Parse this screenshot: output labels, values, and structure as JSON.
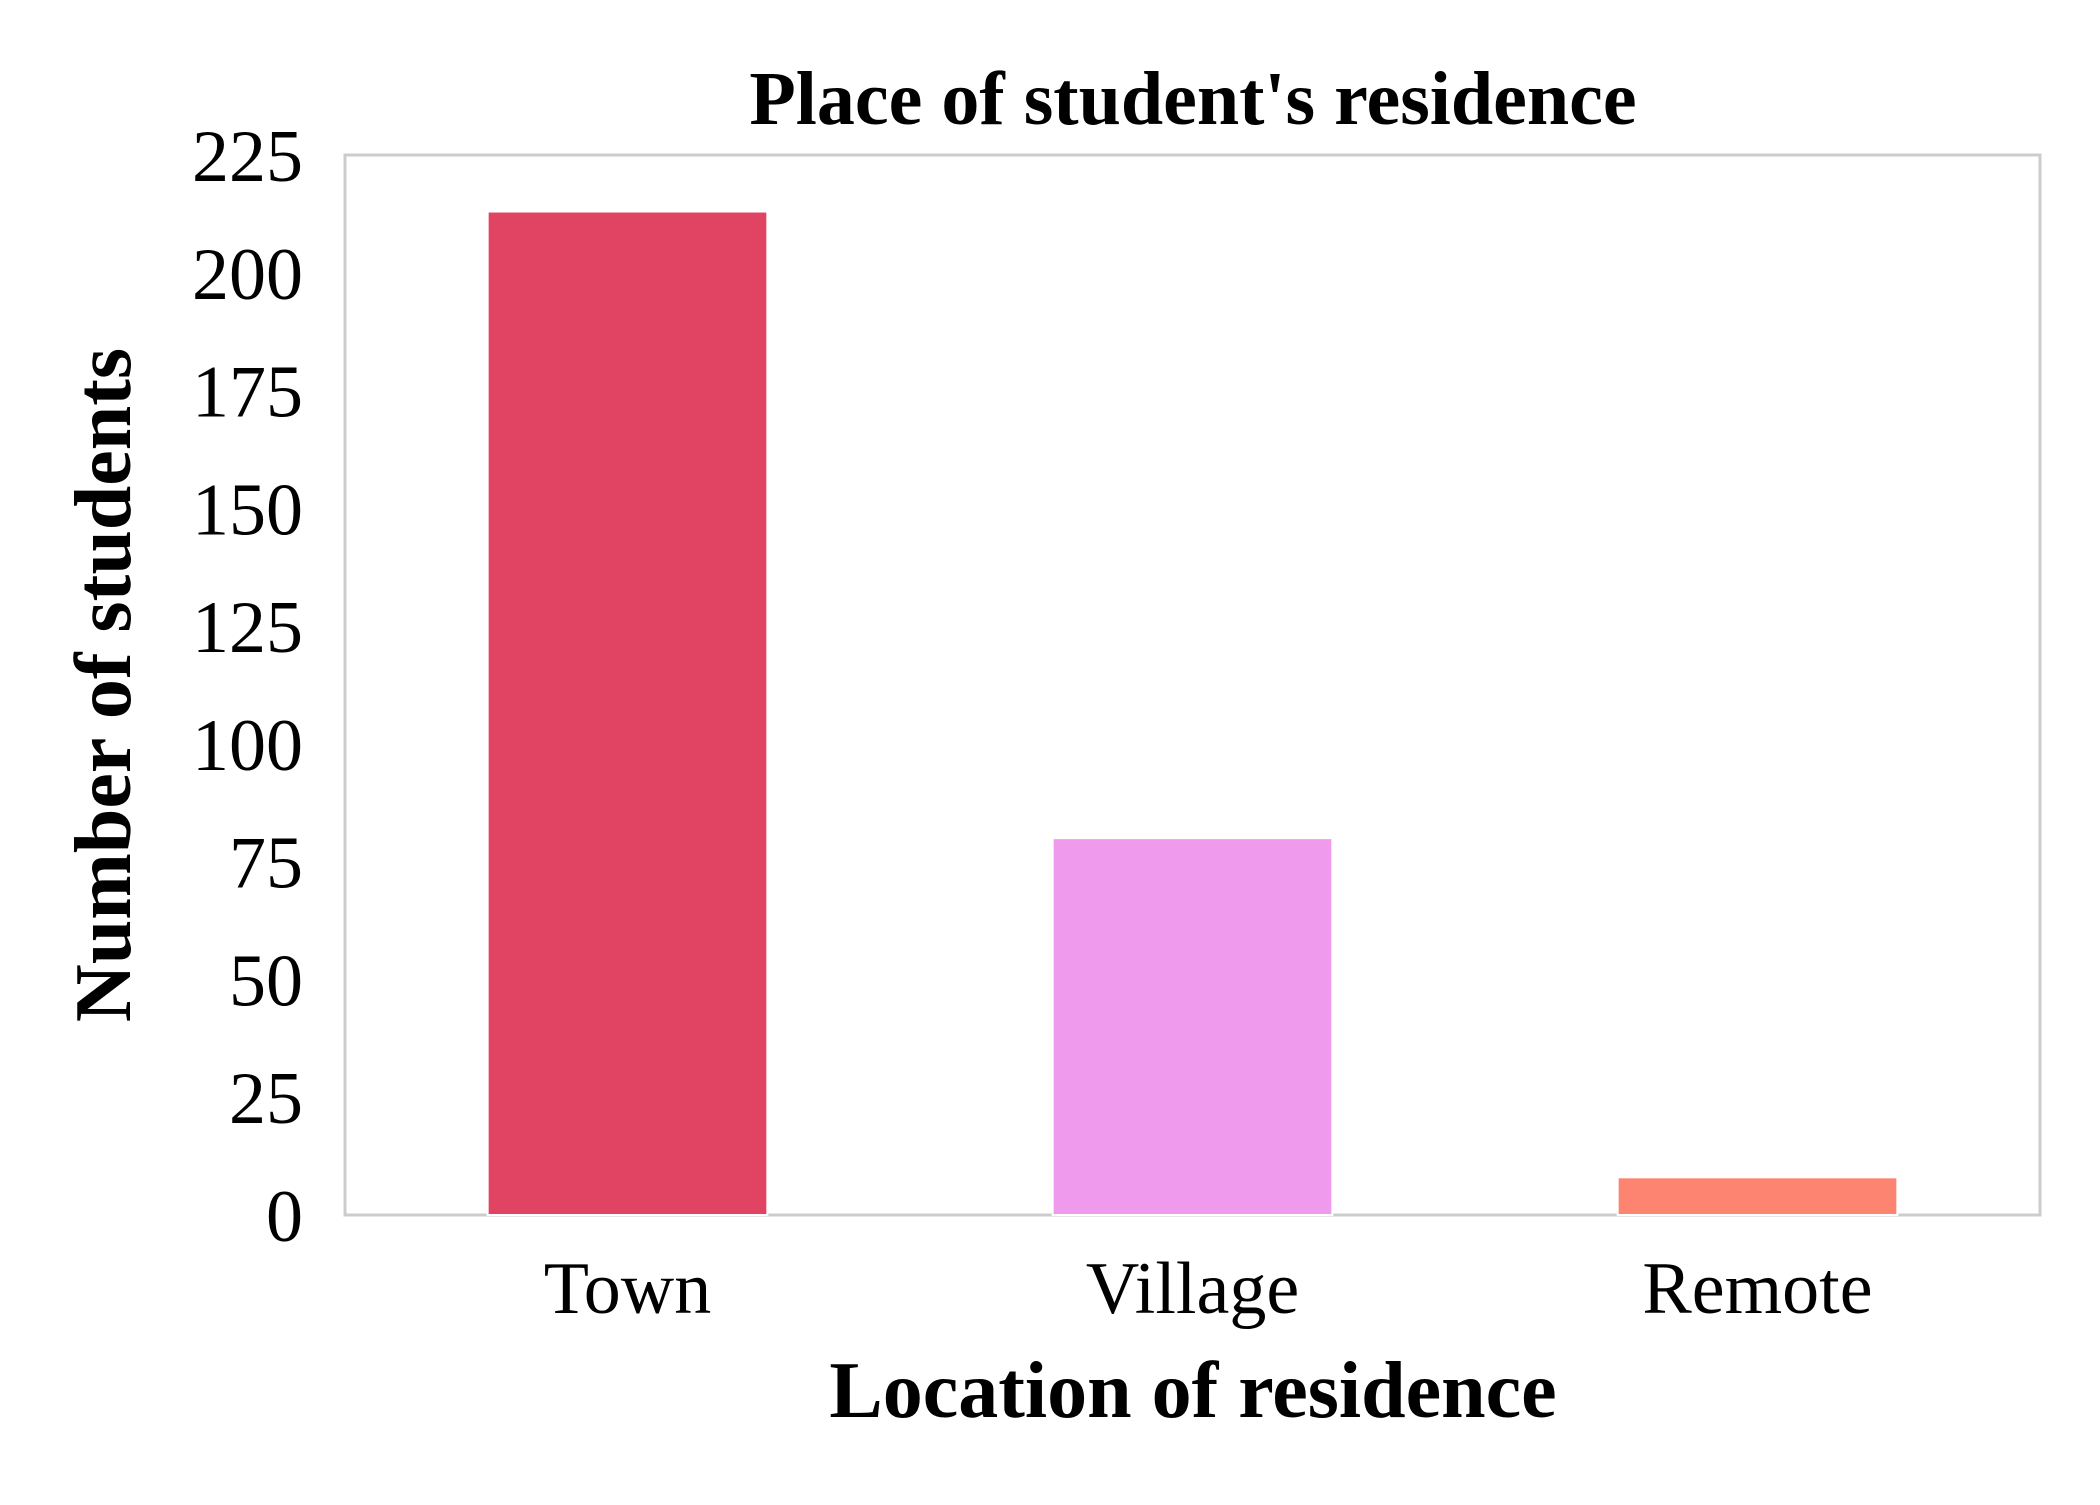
{
  "chart_data": {
    "type": "bar",
    "title": "Place of student's residence",
    "xlabel": "Location of residence",
    "ylabel": "Number of students",
    "categories": [
      "Town",
      "Village",
      "Remote"
    ],
    "values": [
      213,
      80,
      8
    ],
    "colors": [
      "#e04462",
      "#f09aee",
      "#fd8470"
    ],
    "ylim": [
      0,
      225
    ],
    "yticks": [
      0,
      25,
      50,
      75,
      100,
      125,
      150,
      175,
      200,
      225
    ],
    "grid": false,
    "legend": "none",
    "frame_color": "#cccccc"
  }
}
